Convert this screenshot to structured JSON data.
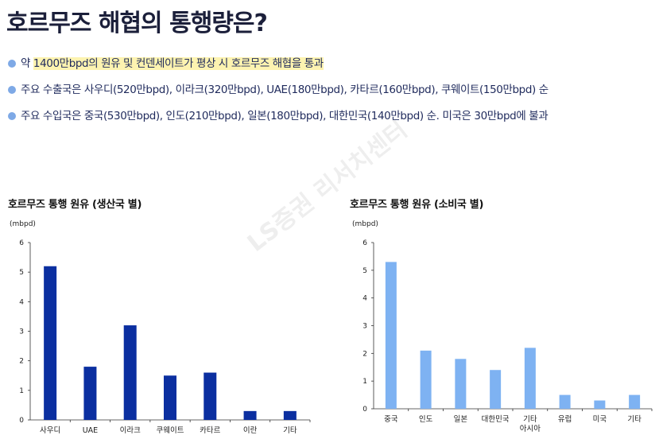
{
  "title": "호르무즈 해협의 통행량은?",
  "bullets": [
    {
      "pre": "약 ",
      "highlight": "1400만bpd의 원유 및 컨덴세이트가 평상 시 호르무즈 해협을 통과",
      "post": ""
    },
    {
      "pre": "주요 수출국은 사우디(520만bpd), 이라크(320만bpd), UAE(180만bpd), 카타르(160만bpd), 쿠웨이트(150만bpd) 순",
      "highlight": "",
      "post": ""
    },
    {
      "pre": "주요 수입국은  중국(530만bpd), 인도(210만bpd), 일본(180만bpd), 대한민국(140만bpd) 순. 미국은 30만bpd에 불과",
      "highlight": "",
      "post": ""
    }
  ],
  "watermark": "LS증권 리서치센터",
  "colors": {
    "dark_bar": "#0b2fa0",
    "light_bar": "#7eb2f2",
    "bullet_dot": "#7ea9e6",
    "highlight": "#fdf3b0"
  },
  "chart_data": [
    {
      "type": "bar",
      "title": "호르무즈 통행 원유 (생산국 별)",
      "unit": "(mbpd)",
      "categories": [
        "사우디",
        "UAE",
        "이라크",
        "쿠웨이트",
        "카타르",
        "이란",
        "기타"
      ],
      "values": [
        5.2,
        1.8,
        3.2,
        1.5,
        1.6,
        0.3,
        0.3
      ],
      "ylim": [
        0,
        6
      ],
      "yticks": [
        "0",
        "1",
        "2",
        "3",
        "4",
        "5",
        "6"
      ],
      "color": "#0b2fa0",
      "grid": false
    },
    {
      "type": "bar",
      "title": "호르무즈 통행 원유 (소비국 별)",
      "unit": "(mbpd)",
      "categories": [
        "중국",
        "인도",
        "일본",
        "대한민국",
        "기타 아시아",
        "유럽",
        "미국",
        "기타"
      ],
      "values": [
        5.3,
        2.1,
        1.8,
        1.4,
        2.2,
        0.5,
        0.3,
        0.5
      ],
      "ylim": [
        0,
        6
      ],
      "yticks": [
        "0",
        "1",
        "2",
        "3",
        "4",
        "5",
        "6"
      ],
      "color": "#7eb2f2",
      "grid": false
    }
  ]
}
